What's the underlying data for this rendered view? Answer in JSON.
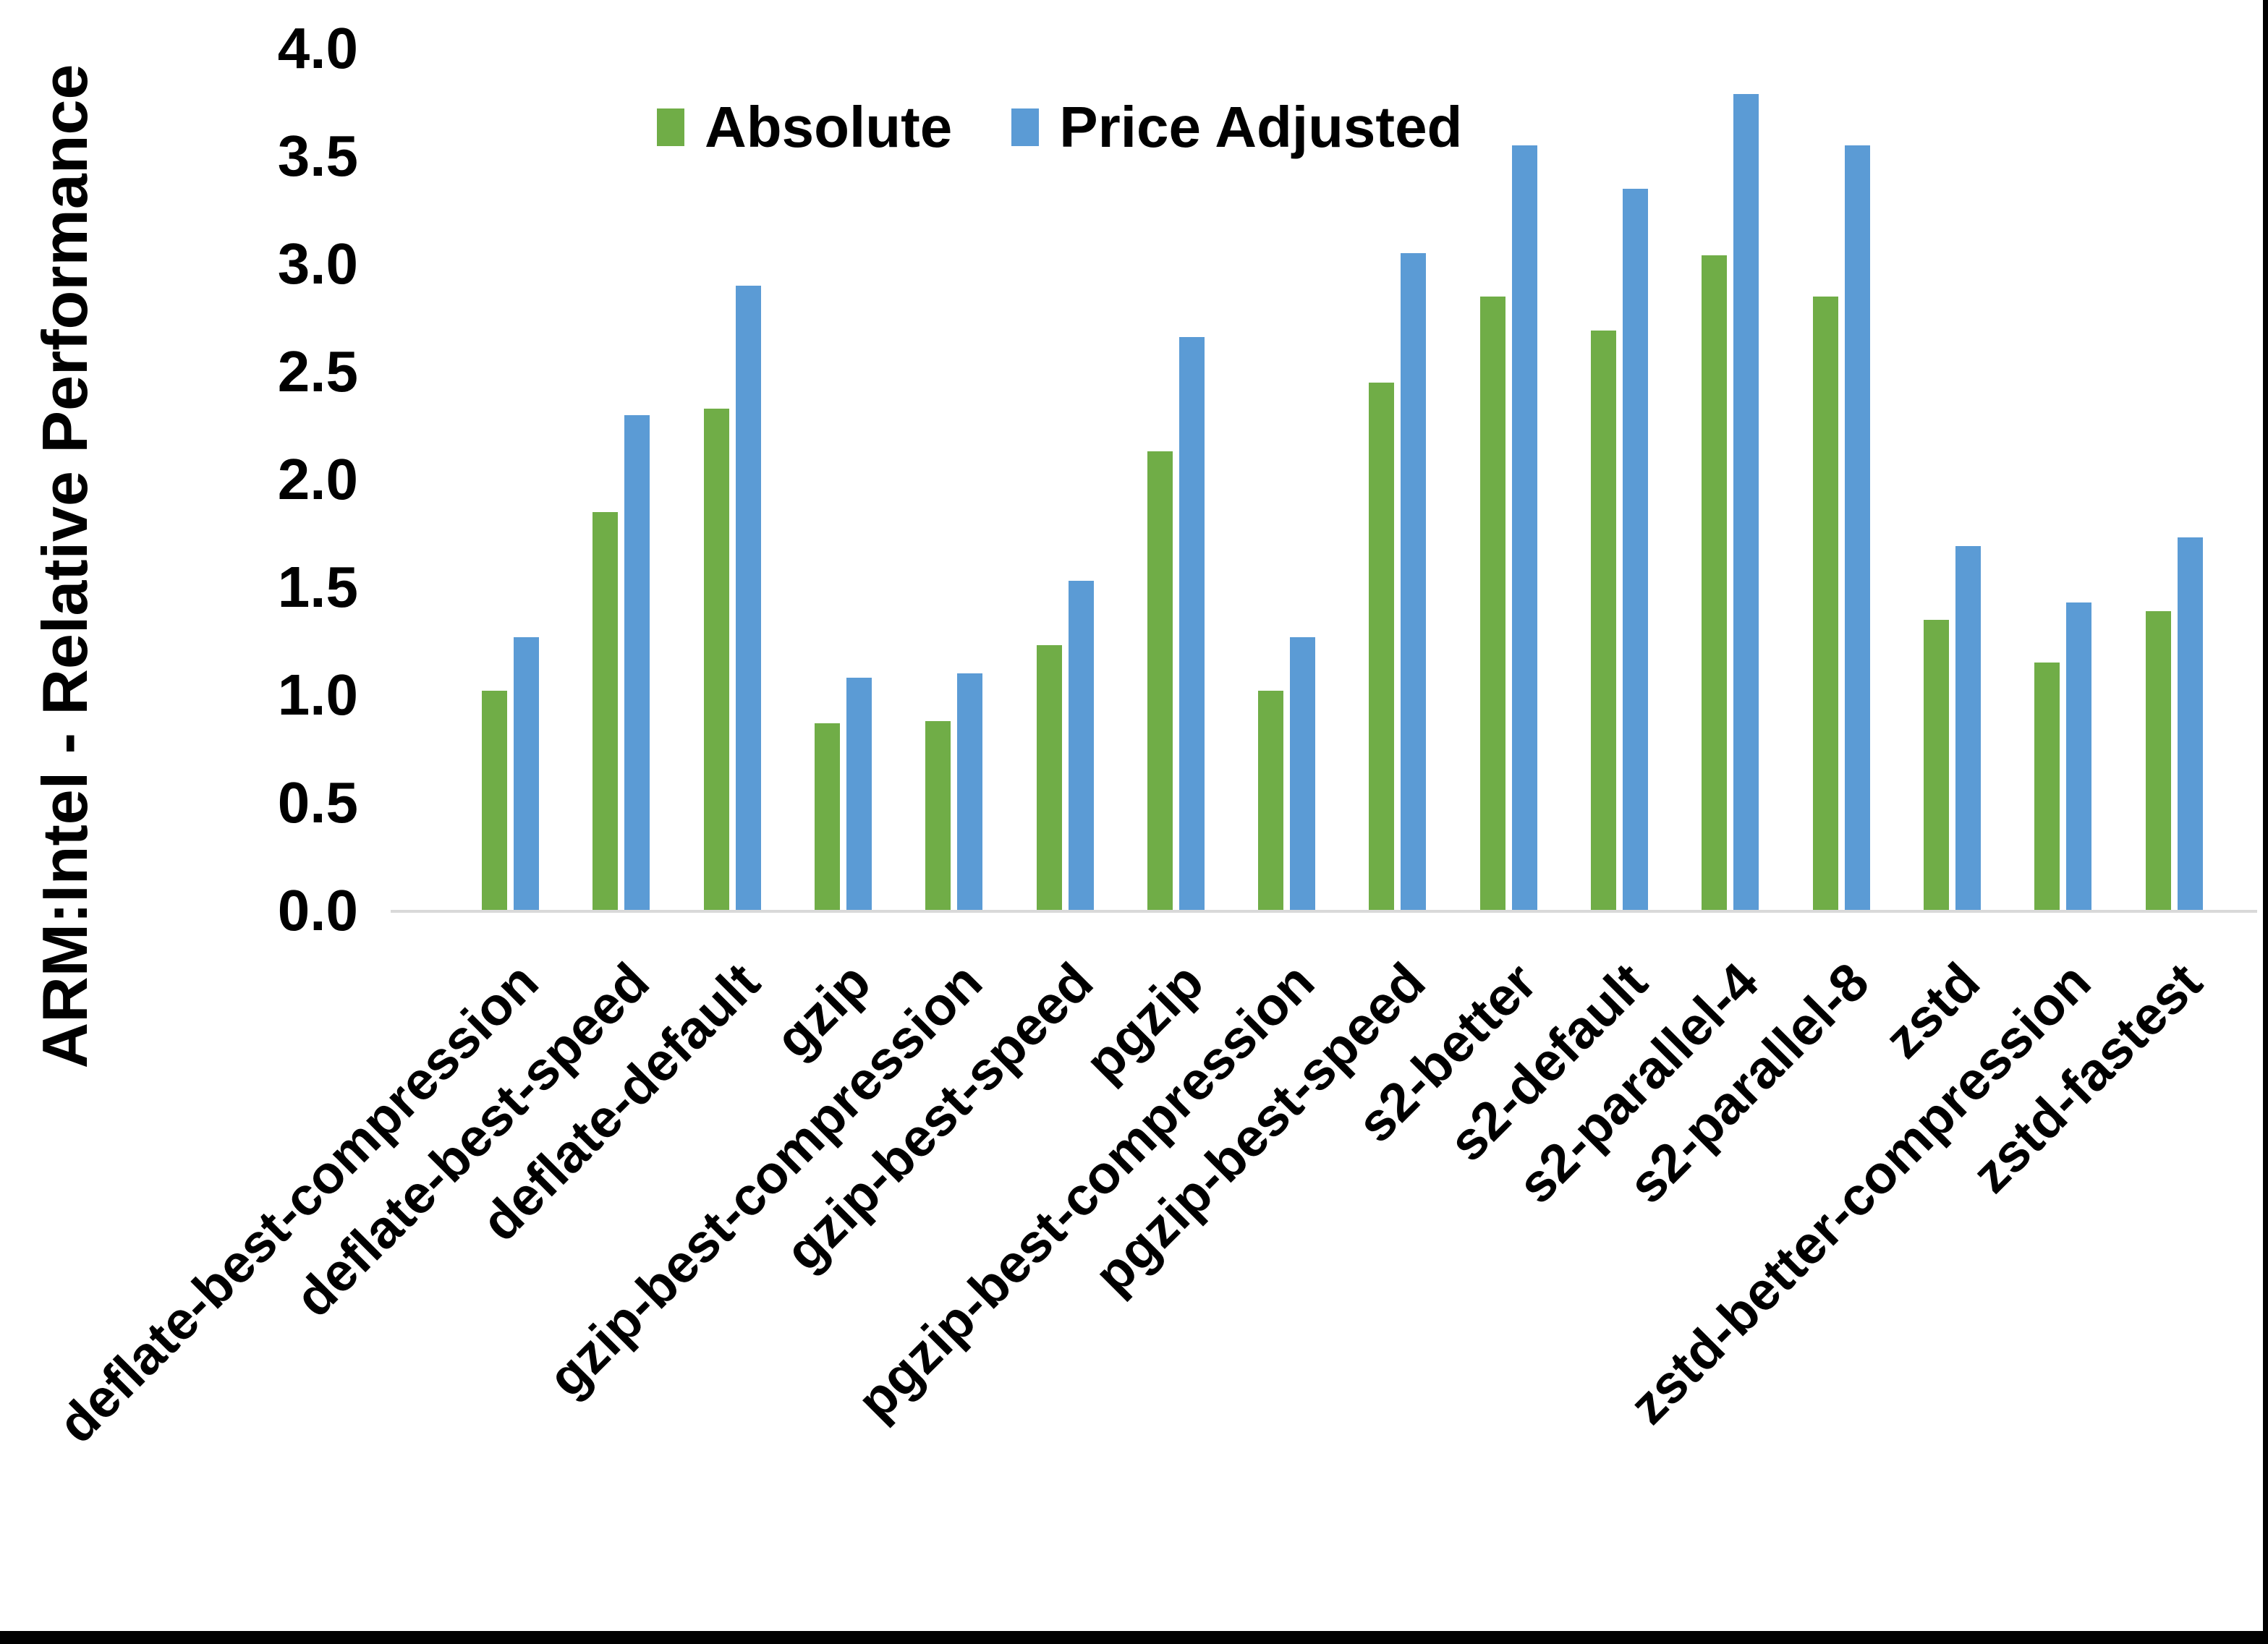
{
  "chart_data": {
    "type": "bar",
    "title": "",
    "xlabel": "",
    "ylabel": "ARM:Intel - Relative Performance",
    "ylim": [
      0,
      4
    ],
    "ytick_step": 0.5,
    "yticks": [
      "0.0",
      "0.5",
      "1.0",
      "1.5",
      "2.0",
      "2.5",
      "3.0",
      "3.5",
      "4.0"
    ],
    "grid": false,
    "legend_position": "top-center",
    "axis_line_color": "#d9d9d9",
    "categories": [
      "deflate-best-compression",
      "deflate-best-speed",
      "deflate-default",
      "gzip",
      "gzip-best-compression",
      "gzip-best-speed",
      "pgzip",
      "pgzip-best-compression",
      "pgzip-best-speed",
      "s2-better",
      "s2-default",
      "s2-parallel-4",
      "s2-parallel-8",
      "zstd",
      "zstd-better-compression",
      "zstd-fastest"
    ],
    "series": [
      {
        "name": "Absolute",
        "color": "#70AD47",
        "values": [
          1.02,
          1.85,
          2.33,
          0.87,
          0.88,
          1.23,
          2.13,
          1.02,
          2.45,
          2.85,
          2.69,
          3.04,
          2.85,
          1.35,
          1.15,
          1.39
        ]
      },
      {
        "name": "Price Adjusted",
        "color": "#5B9BD5",
        "values": [
          1.27,
          2.3,
          2.9,
          1.08,
          1.1,
          1.53,
          2.66,
          1.27,
          3.05,
          3.55,
          3.35,
          3.79,
          3.55,
          1.69,
          1.43,
          1.73
        ]
      }
    ]
  }
}
